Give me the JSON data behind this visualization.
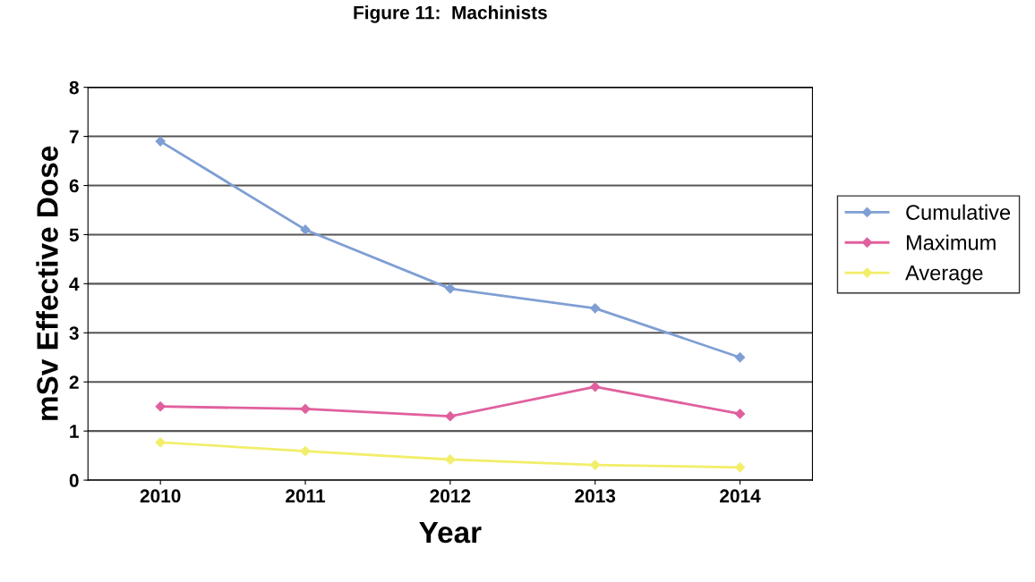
{
  "chart_data": {
    "type": "line",
    "title": "Figure 11:  Machinists",
    "xlabel": "Year",
    "ylabel": "mSv Effective Dose",
    "categories": [
      "2010",
      "2011",
      "2012",
      "2013",
      "2014"
    ],
    "series": [
      {
        "name": "Cumulative",
        "color": "#7f9fd4",
        "values": [
          6.9,
          5.1,
          3.9,
          3.5,
          2.5
        ]
      },
      {
        "name": "Maximum",
        "color": "#e0609e",
        "values": [
          1.5,
          1.45,
          1.3,
          1.9,
          1.35
        ]
      },
      {
        "name": "Average",
        "color": "#f2ee6a",
        "values": [
          0.77,
          0.59,
          0.42,
          0.31,
          0.26
        ]
      }
    ],
    "ylim": [
      0,
      8
    ],
    "yticks": [
      0,
      1,
      2,
      3,
      4,
      5,
      6,
      7,
      8
    ],
    "grid": "y",
    "legend": "right",
    "marker": "diamond"
  }
}
